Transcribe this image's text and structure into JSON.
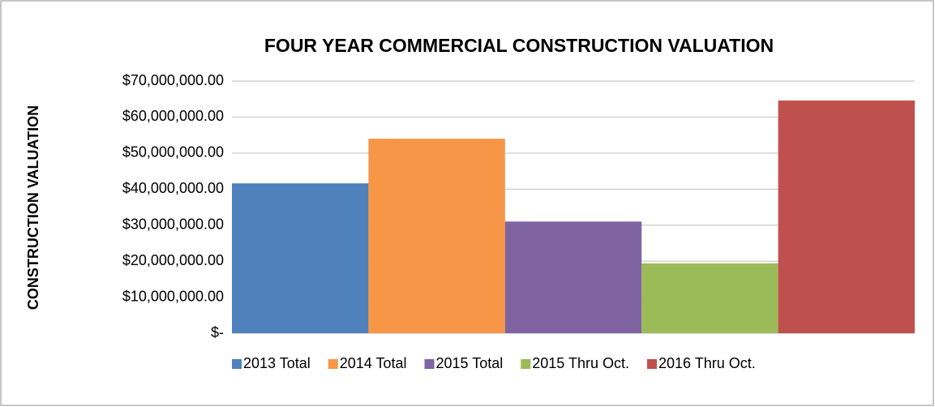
{
  "chart_data": {
    "type": "bar",
    "title": "FOUR YEAR COMMERCIAL CONSTRUCTION VALUATION",
    "y_label": "CONSTRUCTION VALUATION",
    "categories": [
      null
    ],
    "series": [
      {
        "name": "2013 Total",
        "color": "#4f81bd",
        "values": [
          41600000
        ]
      },
      {
        "name": "2014 Total",
        "color": "#f79646",
        "values": [
          54000000
        ]
      },
      {
        "name": "2015 Total",
        "color": "#8064a2",
        "values": [
          31000000
        ]
      },
      {
        "name": "2015 Thru Oct.",
        "color": "#9bbb59",
        "values": [
          19400000
        ]
      },
      {
        "name": "2016 Thru Oct.",
        "color": "#c0504d",
        "values": [
          64600000
        ]
      }
    ],
    "ylim": [
      0,
      70000000
    ],
    "yticks": [
      {
        "value": 0,
        "label": "$-"
      },
      {
        "value": 10000000,
        "label": "$10,000,000.00"
      },
      {
        "value": 20000000,
        "label": "$20,000,000.00"
      },
      {
        "value": 30000000,
        "label": "$30,000,000.00"
      },
      {
        "value": 40000000,
        "label": "$40,000,000.00"
      },
      {
        "value": 50000000,
        "label": "$50,000,000.00"
      },
      {
        "value": 60000000,
        "label": "$60,000,000.00"
      },
      {
        "value": 70000000,
        "label": "$70,000,000.00"
      }
    ],
    "grid": true,
    "legend": "bottom"
  }
}
